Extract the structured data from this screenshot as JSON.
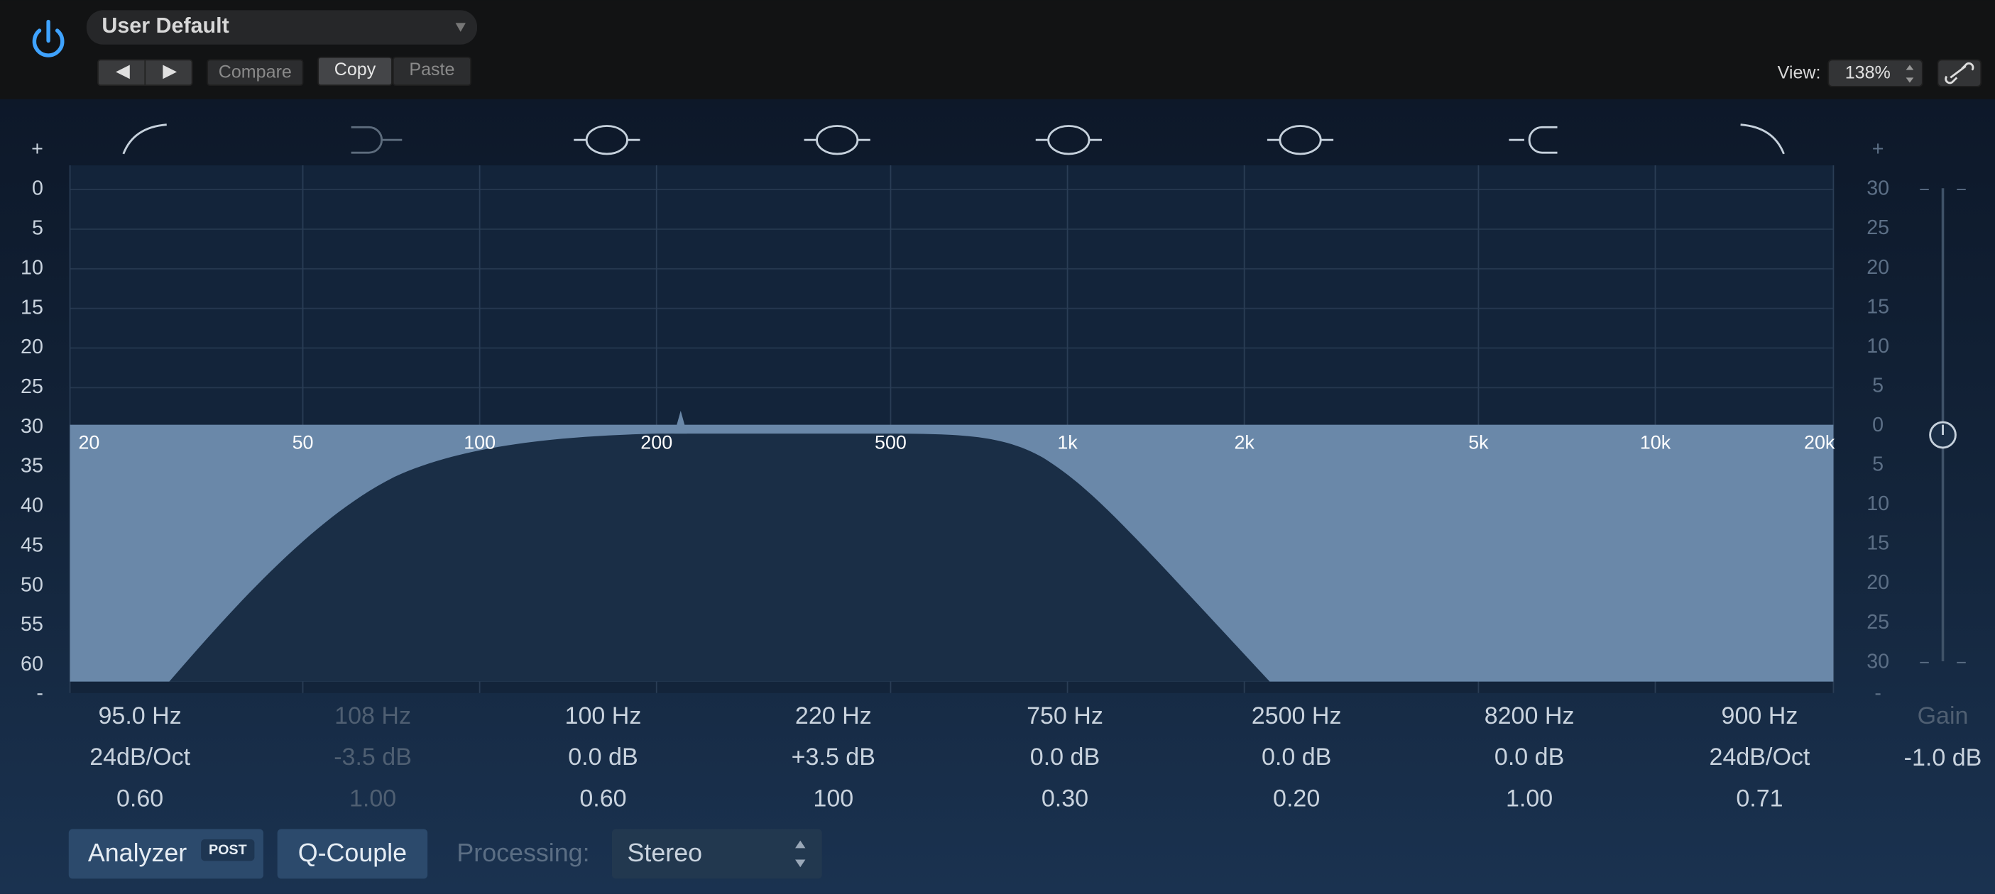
{
  "header": {
    "preset": "User Default",
    "compare": "Compare",
    "copy": "Copy",
    "paste": "Paste",
    "view_label": "View:",
    "view_value": "138%"
  },
  "graph": {
    "left_axis": [
      "+",
      "0",
      "5",
      "10",
      "15",
      "20",
      "25",
      "30",
      "35",
      "40",
      "45",
      "50",
      "55",
      "60",
      "-"
    ],
    "right_axis": [
      "+",
      "30",
      "25",
      "20",
      "15",
      "10",
      "5",
      "0",
      "5",
      "10",
      "15",
      "20",
      "25",
      "30",
      "-"
    ],
    "freq_labels": [
      "20",
      "50",
      "100",
      "200",
      "500",
      "1k",
      "2k",
      "5k",
      "10k",
      "20k"
    ]
  },
  "bands": [
    {
      "frequency": "95.0 Hz",
      "gain": "24dB/Oct",
      "q": "0.60"
    },
    {
      "frequency": "108 Hz",
      "gain": "-3.5 dB",
      "q": "1.00"
    },
    {
      "frequency": "100 Hz",
      "gain": "0.0 dB",
      "q": "0.60"
    },
    {
      "frequency": "220 Hz",
      "gain": "+3.5 dB",
      "q": "100"
    },
    {
      "frequency": "750 Hz",
      "gain": "0.0 dB",
      "q": "0.30"
    },
    {
      "frequency": "2500 Hz",
      "gain": "0.0 dB",
      "q": "0.20"
    },
    {
      "frequency": "8200 Hz",
      "gain": "0.0 dB",
      "q": "1.00"
    },
    {
      "frequency": "900 Hz",
      "gain": "24dB/Oct",
      "q": "0.71"
    }
  ],
  "gain": {
    "label": "Gain",
    "value": "-1.0 dB"
  },
  "footer": {
    "analyzer": "Analyzer",
    "post": "POST",
    "q_couple": "Q-Couple",
    "processing_label": "Processing:",
    "processing_value": "Stereo"
  }
}
